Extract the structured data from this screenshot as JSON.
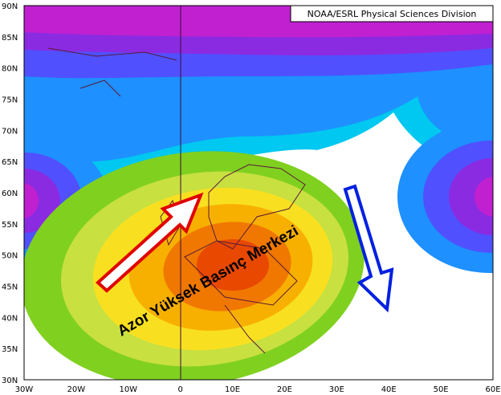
{
  "credit": "NOAA/ESRL Physical Sciences Division",
  "annotation": "Azor Yüksek Basınç Merkezi",
  "lat_labels": [
    "90N",
    "85N",
    "80N",
    "75N",
    "70N",
    "65N",
    "60N",
    "55N",
    "50N",
    "45N",
    "40N",
    "35N",
    "30N"
  ],
  "lon_labels": [
    "30W",
    "20W",
    "10W",
    "0",
    "10E",
    "20E",
    "30E",
    "40E",
    "50E",
    "60E"
  ]
}
